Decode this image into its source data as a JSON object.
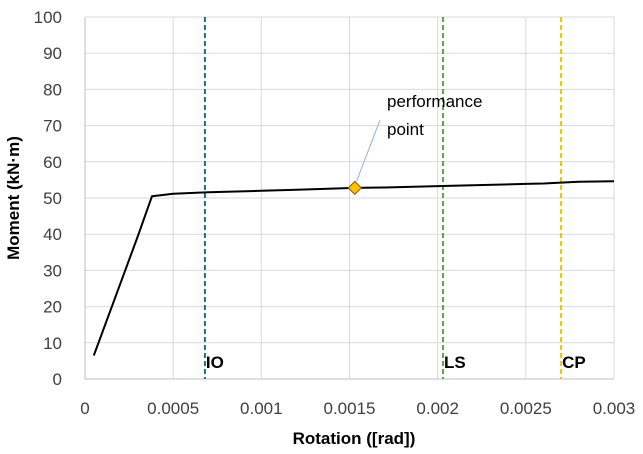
{
  "chart_data": {
    "type": "scatter",
    "title": "",
    "xlabel": "Rotation ([rad])",
    "ylabel": "Moment (kN·m)",
    "xlim": [
      0,
      0.003
    ],
    "ylim": [
      0,
      100
    ],
    "x_ticks": [
      0,
      0.0005,
      0.001,
      0.0015,
      0.002,
      0.0025,
      0.003
    ],
    "x_tick_labels": [
      "0",
      "0.0005",
      "0.001",
      "0.0015",
      "0.002",
      "0.0025",
      "0.003"
    ],
    "y_ticks": [
      0,
      10,
      20,
      30,
      40,
      50,
      60,
      70,
      80,
      90,
      100
    ],
    "y_tick_labels": [
      "0",
      "10",
      "20",
      "30",
      "40",
      "50",
      "60",
      "70",
      "80",
      "90",
      "100"
    ],
    "grid": true,
    "series": [
      {
        "color": "#000000",
        "x": [
          5e-05,
          0.0003,
          0.00038,
          0.0005,
          0.0007,
          0.001,
          0.0012,
          0.0014,
          0.00153,
          0.0017,
          0.002,
          0.0022,
          0.0025,
          0.0026,
          0.0028,
          0.003
        ],
        "y": [
          6.5,
          39.5,
          50.5,
          51.2,
          51.6,
          52.0,
          52.3,
          52.6,
          52.8,
          52.9,
          53.3,
          53.5,
          53.9,
          54.0,
          54.5,
          54.6
        ]
      }
    ],
    "limits": [
      {
        "label": "IO",
        "x": 0.00068,
        "color": "#1F6E7D"
      },
      {
        "label": "LS",
        "x": 0.00203,
        "color": "#5FA052"
      },
      {
        "label": "CP",
        "x": 0.0027,
        "color": "#F2C100"
      }
    ],
    "performance_point": {
      "x": 0.00153,
      "y": 52.8,
      "label_line1": "performance",
      "label_line2": "point",
      "color": "#FFC000",
      "edge_color": "#7F6000"
    }
  }
}
